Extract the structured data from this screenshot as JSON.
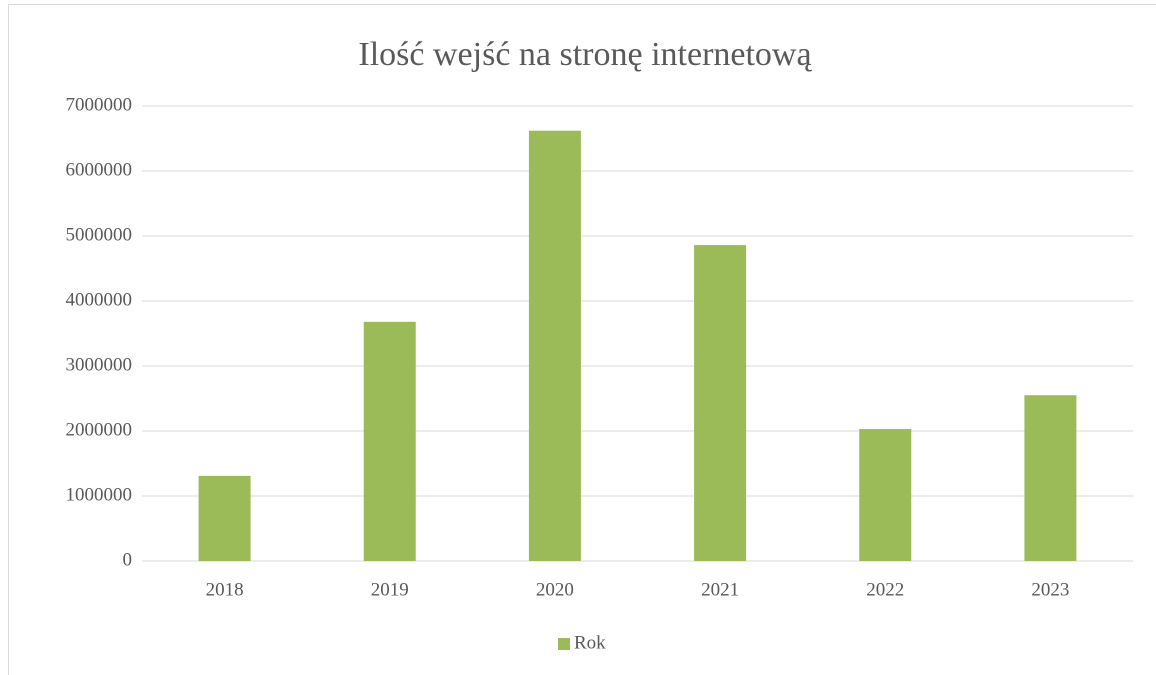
{
  "chart_data": {
    "type": "bar",
    "title": "Ilość wejść na stronę internetową",
    "categories": [
      "2018",
      "2019",
      "2020",
      "2021",
      "2022",
      "2023"
    ],
    "series": [
      {
        "name": "Rok",
        "color": "#9bbb59",
        "values": [
          1310000,
          3680000,
          6620000,
          4860000,
          2030000,
          2550000
        ]
      }
    ],
    "ylim": [
      0,
      7000000
    ],
    "yticks": [
      0,
      1000000,
      2000000,
      3000000,
      4000000,
      5000000,
      6000000,
      7000000
    ],
    "grid": true,
    "legend": "bottom"
  }
}
